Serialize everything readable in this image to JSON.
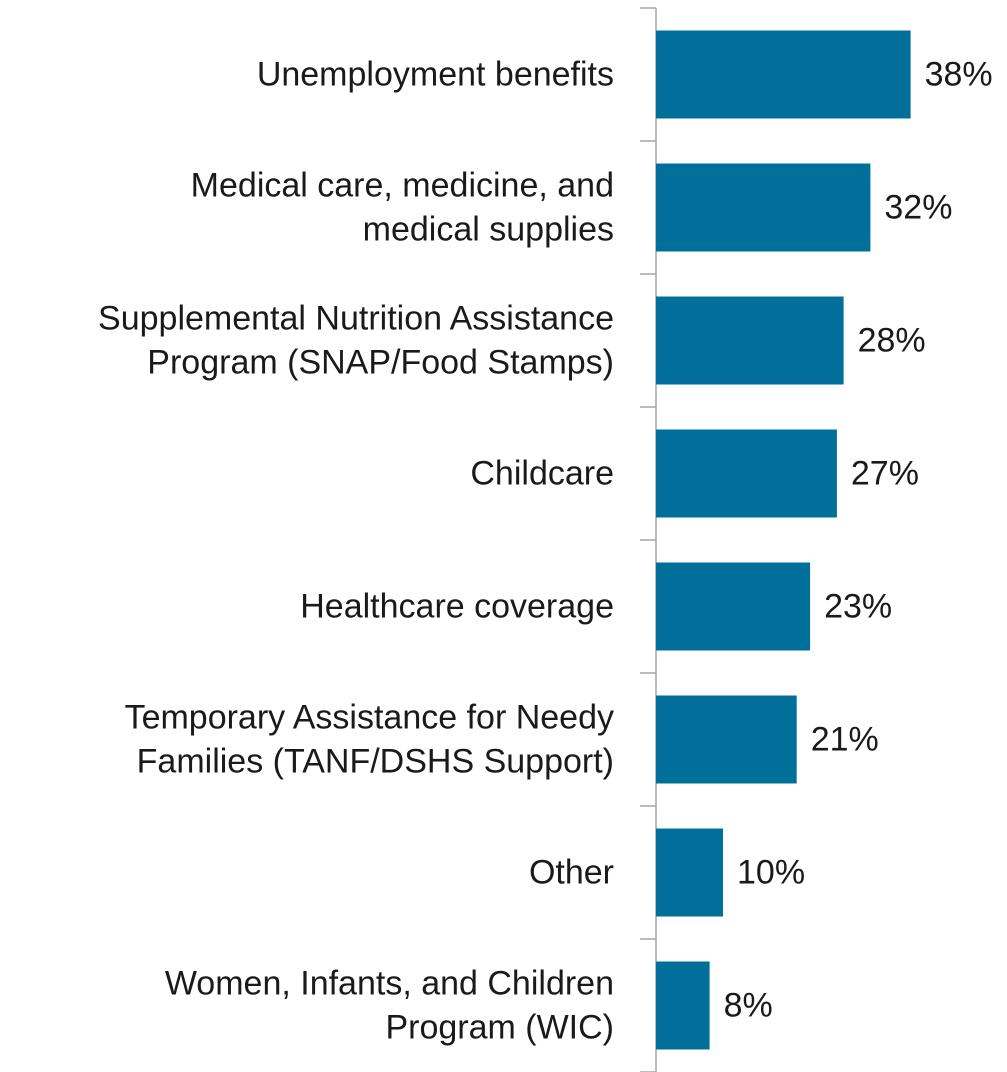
{
  "chart_data": {
    "type": "barh",
    "categories": [
      [
        "Unemployment benefits"
      ],
      [
        "Medical care, medicine, and",
        "medical supplies"
      ],
      [
        "Supplemental Nutrition Assistance",
        "Program (SNAP/Food Stamps)"
      ],
      [
        "Childcare"
      ],
      [
        "Healthcare coverage"
      ],
      [
        "Temporary Assistance for Needy",
        "Families (TANF/DSHS Support)"
      ],
      [
        "Other"
      ],
      [
        "Women, Infants, and Children",
        "Program (WIC)"
      ]
    ],
    "values": [
      38,
      32,
      28,
      27,
      23,
      21,
      10,
      8
    ],
    "value_labels": [
      "38%",
      "32%",
      "28%",
      "27%",
      "23%",
      "21%",
      "10%",
      "8%"
    ],
    "color": "#00709a",
    "xlim": [
      0,
      50
    ]
  }
}
